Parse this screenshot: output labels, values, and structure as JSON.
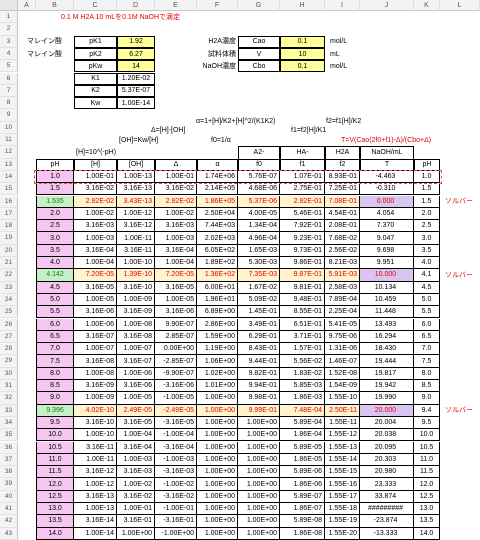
{
  "title": "0.1 M H2A 10 mLを0.1M NaOHで滴定",
  "columns": [
    "A",
    "B",
    "C",
    "D",
    "E",
    "F",
    "G",
    "H",
    "I",
    "J",
    "K",
    "L"
  ],
  "params_left": [
    {
      "name": "マレイン酸",
      "sym": "pK1",
      "val": "1.92"
    },
    {
      "name": "マレイン酸",
      "sym": "pK2",
      "val": "6.27"
    },
    {
      "name": "",
      "sym": "pKw",
      "val": "14"
    }
  ],
  "constants": [
    {
      "sym": "K1",
      "val": "1.20E-02"
    },
    {
      "sym": "K2",
      "val": "5.37E-07"
    },
    {
      "sym": "Kw",
      "val": "1.00E-14"
    }
  ],
  "params_right": [
    {
      "label": "H2A濃度",
      "sym": "Cao",
      "val": "0.1",
      "unit": "mol/L"
    },
    {
      "label": "試料体積",
      "sym": "V",
      "val": "10",
      "unit": "mL"
    },
    {
      "label": "NaOH濃度",
      "sym": "Cbo",
      "val": "0.1",
      "unit": "mol/L"
    }
  ],
  "formulas": {
    "alpha": "α=1+[H]/K2+[H]^2/(K1K2)",
    "f2": "f2=f1[H]/K2",
    "delta": "Δ=[H]-[OH]",
    "f1": "f1=f2[H]/K1",
    "oh": "[OH]=Kw/[H]",
    "f0": "f0=1/α",
    "h": "[H]=10^(-pH)",
    "t": "T=V(Cao(2f0+f1)-Δ)/(Cbo+Δ)"
  },
  "headers": [
    "pH",
    "[H]",
    "[OH]",
    "Δ",
    "α",
    "f0",
    "f1",
    "f2",
    "NaOH/mL",
    "pH"
  ],
  "header_top": {
    "f0": "A2-",
    "f1": "HA-",
    "f2": "H2A",
    "naoh": "NaOH/mL",
    "t": "T"
  },
  "solver_label": "ソルバー",
  "rows": [
    {
      "r": 14,
      "v": [
        "1.0",
        "1.00E-01",
        "1.00E-13",
        "1.00E-01",
        "1.74E+06",
        "5.76E-07",
        "1.07E-01",
        "8.93E-01",
        "-4.463",
        "1.0"
      ],
      "style": "pink"
    },
    {
      "r": 15,
      "v": [
        "1.5",
        "3.16E-02",
        "3.16E-13",
        "3.16E-02",
        "2.14E+05",
        "4.68E-06",
        "2.75E-01",
        "7.25E-01",
        "-0.310",
        "1.5"
      ],
      "style": "pink"
    },
    {
      "r": 16,
      "v": [
        "1.535",
        "2.92E-02",
        "3.43E-13",
        "2.92E-02",
        "1.86E+05",
        "5.37E-06",
        "2.92E-01",
        "7.08E-01",
        "0.000",
        "1.5"
      ],
      "style": "green",
      "solver": true
    },
    {
      "r": 17,
      "v": [
        "2.0",
        "1.00E-02",
        "1.00E-12",
        "1.00E-02",
        "2.50E+04",
        "4.00E-05",
        "5.46E-01",
        "4.54E-01",
        "4.054",
        "2.0"
      ],
      "style": "pink"
    },
    {
      "r": 18,
      "v": [
        "2.5",
        "3.16E-03",
        "3.16E-12",
        "3.16E-03",
        "7.44E+03",
        "1.34E-04",
        "7.92E-01",
        "2.08E-01",
        "7.370",
        "2.5"
      ],
      "style": "pink"
    },
    {
      "r": 19,
      "v": [
        "3.0",
        "1.00E-03",
        "1.00E-11",
        "1.00E-03",
        "2.02E+03",
        "4.96E-04",
        "9.23E-01",
        "7.68E-02",
        "9.047",
        "3.0"
      ],
      "style": "pink"
    },
    {
      "r": 20,
      "v": [
        "3.5",
        "3.16E-04",
        "3.16E-11",
        "3.16E-04",
        "6.05E+02",
        "1.65E-03",
        "9.73E-01",
        "2.56E-02",
        "9.698",
        "3.5"
      ],
      "style": "pink"
    },
    {
      "r": 21,
      "v": [
        "4.0",
        "1.00E-04",
        "1.00E-10",
        "1.00E-04",
        "1.89E+02",
        "5.30E-03",
        "9.86E-01",
        "8.21E-03",
        "9.951",
        "4.0"
      ],
      "style": "pink"
    },
    {
      "r": 22,
      "v": [
        "4.142",
        "7.20E-05",
        "1.39E-10",
        "7.20E-05",
        "1.36E+02",
        "7.35E-03",
        "9.87E-01",
        "5.91E-03",
        "10.000",
        "4.1"
      ],
      "style": "green",
      "solver": true
    },
    {
      "r": 23,
      "v": [
        "4.5",
        "3.16E-05",
        "3.16E-10",
        "3.16E-05",
        "6.00E+01",
        "1.67E-02",
        "9.81E-01",
        "2.58E-03",
        "10.134",
        "4.5"
      ],
      "style": "pink"
    },
    {
      "r": 24,
      "v": [
        "5.0",
        "1.00E-05",
        "1.00E-09",
        "1.00E-05",
        "1.96E+01",
        "5.09E-02",
        "9.48E-01",
        "7.89E-04",
        "10.459",
        "5.0"
      ],
      "style": "pink"
    },
    {
      "r": 25,
      "v": [
        "5.5",
        "3.16E-06",
        "3.16E-09",
        "3.16E-06",
        "6.89E+00",
        "1.45E-01",
        "8.55E-01",
        "2.25E-04",
        "11.448",
        "5.5"
      ],
      "style": "pink"
    },
    {
      "r": 26,
      "v": [
        "6.0",
        "1.00E-06",
        "1.00E-08",
        "9.90E-07",
        "2.86E+00",
        "3.49E-01",
        "6.51E-01",
        "5.41E-05",
        "13.493",
        "6.0"
      ],
      "style": "pink"
    },
    {
      "r": 27,
      "v": [
        "6.5",
        "3.16E-07",
        "3.16E-08",
        "2.85E-07",
        "1.59E+00",
        "6.29E-01",
        "3.71E-01",
        "9.75E-06",
        "16.294",
        "6.5"
      ],
      "style": "pink"
    },
    {
      "r": 28,
      "v": [
        "7.0",
        "1.00E-07",
        "1.00E-07",
        "0.00E+00",
        "1.19E+00",
        "8.43E-01",
        "1.57E-01",
        "1.31E-06",
        "18.430",
        "7.0"
      ],
      "style": "pink"
    },
    {
      "r": 29,
      "v": [
        "7.5",
        "3.16E-08",
        "3.16E-07",
        "-2.85E-07",
        "1.06E+00",
        "9.44E-01",
        "5.56E-02",
        "1.46E-07",
        "19.444",
        "7.5"
      ],
      "style": "pink"
    },
    {
      "r": 30,
      "v": [
        "8.0",
        "1.00E-08",
        "1.00E-06",
        "-9.90E-07",
        "1.02E+00",
        "9.82E-01",
        "1.83E-02",
        "1.52E-08",
        "19.817",
        "8.0"
      ],
      "style": "pink"
    },
    {
      "r": 31,
      "v": [
        "8.5",
        "3.16E-09",
        "3.16E-06",
        "-3.16E-06",
        "1.01E+00",
        "9.94E-01",
        "5.85E-03",
        "1.54E-09",
        "19.942",
        "8.5"
      ],
      "style": "pink"
    },
    {
      "r": 32,
      "v": [
        "9.0",
        "1.00E-09",
        "1.00E-05",
        "-1.00E-05",
        "1.00E+00",
        "9.98E-01",
        "1.86E-03",
        "1.55E-10",
        "19.990",
        "9.0"
      ],
      "style": "pink"
    },
    {
      "r": 33,
      "v": [
        "9.396",
        "4.02E-10",
        "2.49E-05",
        "-2.49E-05",
        "1.00E+00",
        "9.99E-01",
        "7.48E-04",
        "2.50E-11",
        "20.000",
        "9.4"
      ],
      "style": "green",
      "solver": true
    },
    {
      "r": 34,
      "v": [
        "9.5",
        "3.16E-10",
        "3.16E-05",
        "-3.16E-05",
        "1.00E+00",
        "1.00E+00",
        "5.89E-04",
        "1.55E-11",
        "20.004",
        "9.5"
      ],
      "style": "pink"
    },
    {
      "r": 35,
      "v": [
        "10.0",
        "1.00E-10",
        "1.00E-04",
        "-1.00E-04",
        "1.00E+00",
        "1.00E+00",
        "1.86E-04",
        "1.55E-12",
        "20.038",
        "10.0"
      ],
      "style": "pink"
    },
    {
      "r": 36,
      "v": [
        "10.5",
        "3.16E-11",
        "3.16E-04",
        "-3.16E-04",
        "1.00E+00",
        "1.00E+00",
        "5.89E-05",
        "1.55E-13",
        "20.095",
        "10.5"
      ],
      "style": "pink"
    },
    {
      "r": 37,
      "v": [
        "11.0",
        "1.00E-11",
        "1.00E-03",
        "-1.00E-03",
        "1.00E+00",
        "1.00E+00",
        "1.86E-05",
        "1.55E-14",
        "20.303",
        "11.0"
      ],
      "style": "pink"
    },
    {
      "r": 38,
      "v": [
        "11.5",
        "3.16E-12",
        "3.16E-03",
        "-3.16E-03",
        "1.00E+00",
        "1.00E+00",
        "5.89E-06",
        "1.55E-15",
        "20.980",
        "11.5"
      ],
      "style": "pink"
    },
    {
      "r": 39,
      "v": [
        "12.0",
        "1.00E-12",
        "1.00E-02",
        "-1.00E-02",
        "1.00E+00",
        "1.00E+00",
        "1.86E-06",
        "1.55E-16",
        "23.333",
        "12.0"
      ],
      "style": "pink"
    },
    {
      "r": 40,
      "v": [
        "12.5",
        "3.16E-13",
        "3.16E-02",
        "-3.16E-02",
        "1.00E+00",
        "1.00E+00",
        "5.89E-07",
        "1.55E-17",
        "33.874",
        "12.5"
      ],
      "style": "pink"
    },
    {
      "r": 41,
      "v": [
        "13.0",
        "1.00E-13",
        "1.00E-01",
        "-1.00E-01",
        "1.00E+00",
        "1.00E+00",
        "1.86E-07",
        "1.55E-18",
        "#########",
        "13.0"
      ],
      "style": "pink"
    },
    {
      "r": 42,
      "v": [
        "13.5",
        "3.16E-14",
        "3.16E-01",
        "-3.16E-01",
        "1.00E+00",
        "1.00E+00",
        "5.89E-08",
        "1.55E-19",
        "-23.874",
        "13.5"
      ],
      "style": "pink"
    },
    {
      "r": 43,
      "v": [
        "14.0",
        "1.00E-14",
        "1.00E+00",
        "-1.00E+00",
        "1.00E+00",
        "1.00E+00",
        "1.86E-08",
        "1.55E-20",
        "-13.333",
        "14.0"
      ],
      "style": "pink"
    }
  ]
}
